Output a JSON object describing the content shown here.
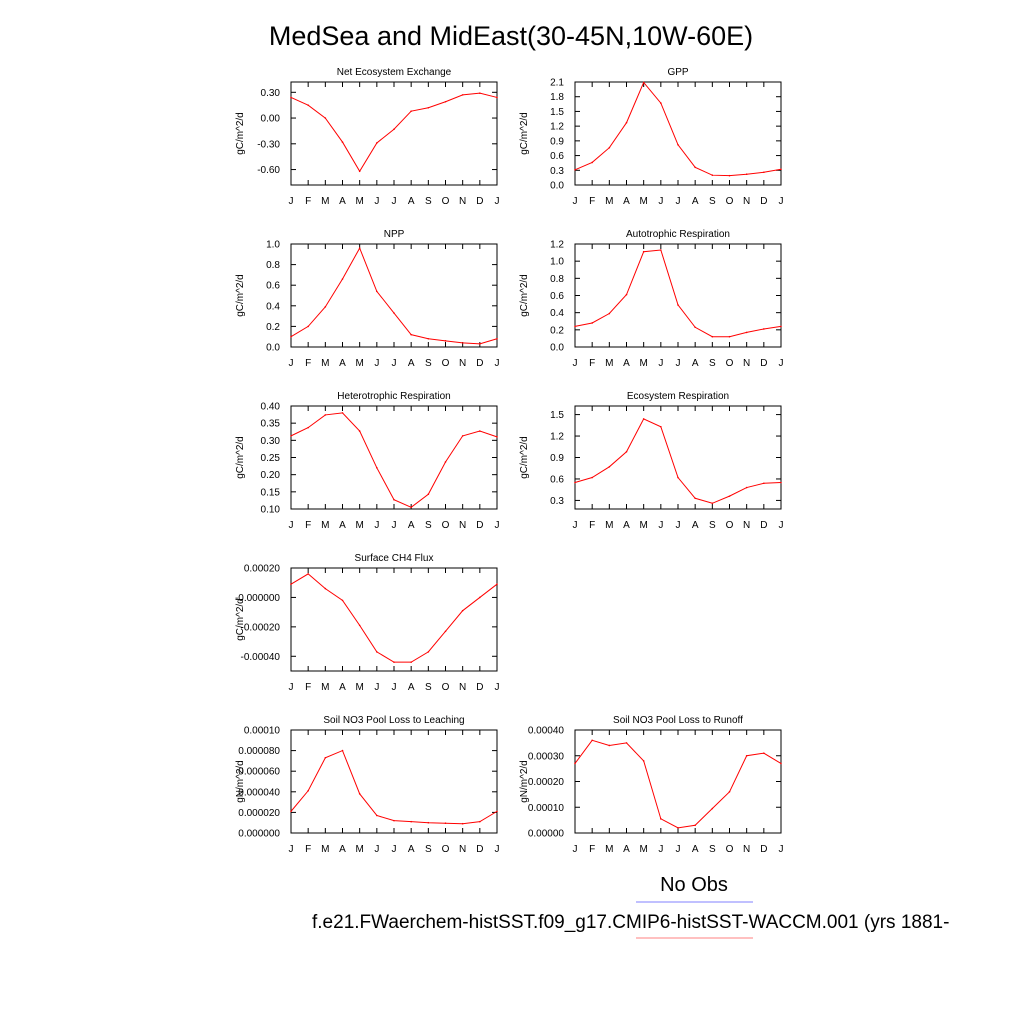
{
  "figure": {
    "title": "MedSea and MidEast(30-45N,10W-60E)",
    "legend_obs": "No Obs",
    "legend_run": "f.e21.FWaerchem-histSST.f09_g17.CMIP6-histSST-WACCM.001 (yrs 1881-",
    "colors": {
      "model": "#ff0000",
      "obs": "#8080ff",
      "axis": "#000000"
    }
  },
  "chart_data": [
    {
      "type": "line",
      "title": "Net Ecosystem Exchange",
      "ylabel": "gC/m^2/d",
      "categories": [
        "J",
        "F",
        "M",
        "A",
        "M",
        "J",
        "J",
        "A",
        "S",
        "O",
        "N",
        "D",
        "J"
      ],
      "yticks": [
        "0.30",
        "0.00",
        "-0.30",
        "-0.60"
      ],
      "ytick_values": [
        0.3,
        0.0,
        -0.3,
        -0.6
      ],
      "ylim": [
        -0.78,
        0.42
      ],
      "series": [
        {
          "values": [
            0.24,
            0.15,
            0.0,
            -0.28,
            -0.62,
            -0.29,
            -0.13,
            0.08,
            0.12,
            0.19,
            0.27,
            0.29,
            0.24
          ]
        }
      ]
    },
    {
      "type": "line",
      "title": "GPP",
      "ylabel": "gC/m^2/d",
      "categories": [
        "J",
        "F",
        "M",
        "A",
        "M",
        "J",
        "J",
        "A",
        "S",
        "O",
        "N",
        "D",
        "J"
      ],
      "yticks": [
        "2.1",
        "1.8",
        "1.5",
        "1.2",
        "0.9",
        "0.6",
        "0.3",
        "0.0"
      ],
      "ytick_values": [
        2.1,
        1.8,
        1.5,
        1.2,
        0.9,
        0.6,
        0.3,
        0.0
      ],
      "ylim": [
        0,
        2.1
      ],
      "series": [
        {
          "values": [
            0.31,
            0.46,
            0.76,
            1.27,
            2.09,
            1.67,
            0.82,
            0.36,
            0.2,
            0.19,
            0.22,
            0.26,
            0.32
          ]
        }
      ]
    },
    {
      "type": "line",
      "title": "NPP",
      "ylabel": "gC/m^2/d",
      "categories": [
        "J",
        "F",
        "M",
        "A",
        "M",
        "J",
        "J",
        "A",
        "S",
        "O",
        "N",
        "D",
        "J"
      ],
      "yticks": [
        "1.0",
        "0.8",
        "0.6",
        "0.4",
        "0.2",
        "0.0"
      ],
      "ytick_values": [
        1.0,
        0.8,
        0.6,
        0.4,
        0.2,
        0.0
      ],
      "ylim": [
        0,
        1.0
      ],
      "series": [
        {
          "values": [
            0.1,
            0.2,
            0.39,
            0.66,
            0.96,
            0.54,
            0.33,
            0.12,
            0.08,
            0.06,
            0.04,
            0.03,
            0.08
          ]
        }
      ]
    },
    {
      "type": "line",
      "title": "Autotrophic Respiration",
      "ylabel": "gC/m^2/d",
      "categories": [
        "J",
        "F",
        "M",
        "A",
        "M",
        "J",
        "J",
        "A",
        "S",
        "O",
        "N",
        "D",
        "J"
      ],
      "yticks": [
        "1.2",
        "1.0",
        "0.8",
        "0.6",
        "0.4",
        "0.2",
        "0.0"
      ],
      "ytick_values": [
        1.2,
        1.0,
        0.8,
        0.6,
        0.4,
        0.2,
        0.0
      ],
      "ylim": [
        0,
        1.2
      ],
      "series": [
        {
          "values": [
            0.24,
            0.28,
            0.39,
            0.61,
            1.11,
            1.13,
            0.49,
            0.23,
            0.12,
            0.12,
            0.17,
            0.21,
            0.24
          ]
        }
      ]
    },
    {
      "type": "line",
      "title": "Heterotrophic Respiration",
      "ylabel": "gC/m^2/d",
      "categories": [
        "J",
        "F",
        "M",
        "A",
        "M",
        "J",
        "J",
        "A",
        "S",
        "O",
        "N",
        "D",
        "J"
      ],
      "yticks": [
        "0.40",
        "0.35",
        "0.30",
        "0.25",
        "0.20",
        "0.15",
        "0.10"
      ],
      "ytick_values": [
        0.4,
        0.35,
        0.3,
        0.25,
        0.2,
        0.15,
        0.1
      ],
      "ylim": [
        0.1,
        0.4
      ],
      "series": [
        {
          "values": [
            0.313,
            0.337,
            0.374,
            0.38,
            0.327,
            0.22,
            0.127,
            0.105,
            0.143,
            0.237,
            0.313,
            0.327,
            0.31
          ]
        }
      ]
    },
    {
      "type": "line",
      "title": "Ecosystem Respiration",
      "ylabel": "gC/m^2/d",
      "categories": [
        "J",
        "F",
        "M",
        "A",
        "M",
        "J",
        "J",
        "A",
        "S",
        "O",
        "N",
        "D",
        "J"
      ],
      "yticks": [
        "1.5",
        "1.2",
        "0.9",
        "0.6",
        "0.3"
      ],
      "ytick_values": [
        1.5,
        1.2,
        0.9,
        0.6,
        0.3
      ],
      "ylim": [
        0.18,
        1.62
      ],
      "series": [
        {
          "values": [
            0.55,
            0.62,
            0.77,
            0.98,
            1.44,
            1.33,
            0.62,
            0.33,
            0.26,
            0.36,
            0.48,
            0.54,
            0.55
          ]
        }
      ]
    },
    {
      "type": "line",
      "title": "Surface CH4 Flux",
      "ylabel": "gC/m^2/d",
      "categories": [
        "J",
        "F",
        "M",
        "A",
        "M",
        "J",
        "J",
        "A",
        "S",
        "O",
        "N",
        "D",
        "J"
      ],
      "yticks": [
        "0.00020",
        "-0.000000",
        "-0.00020",
        "-0.00040"
      ],
      "ytick_values": [
        0.0002,
        0.0,
        -0.0002,
        -0.0004
      ],
      "ylim": [
        -0.0005,
        0.0002
      ],
      "series": [
        {
          "values": [
            9e-05,
            0.00016,
            6e-05,
            -2e-05,
            -0.00019,
            -0.00037,
            -0.00044,
            -0.00044,
            -0.00037,
            -0.00023,
            -9e-05,
            0.0,
            9e-05
          ]
        }
      ]
    },
    {
      "type": "line",
      "title": "Soil NO3 Pool Loss to Leaching",
      "ylabel": "gN/m^2/d",
      "categories": [
        "J",
        "F",
        "M",
        "A",
        "M",
        "J",
        "J",
        "A",
        "S",
        "O",
        "N",
        "D",
        "J"
      ],
      "yticks": [
        "0.00010",
        "0.000080",
        "0.000060",
        "0.000040",
        "0.000020",
        "0.000000"
      ],
      "ytick_values": [
        0.0001,
        8e-05,
        6e-05,
        4e-05,
        2e-05,
        0.0
      ],
      "ylim": [
        0,
        0.0001
      ],
      "series": [
        {
          "values": [
            2.1e-05,
            4.1e-05,
            7.3e-05,
            8e-05,
            3.8e-05,
            1.7e-05,
            1.2e-05,
            1.1e-05,
            1e-05,
            9.5e-06,
            9e-06,
            1.1e-05,
            2.1e-05
          ]
        }
      ]
    },
    {
      "type": "line",
      "title": "Soil NO3 Pool Loss to Runoff",
      "ylabel": "gN/m^2/d",
      "categories": [
        "J",
        "F",
        "M",
        "A",
        "M",
        "J",
        "J",
        "A",
        "S",
        "O",
        "N",
        "D",
        "J"
      ],
      "yticks": [
        "0.00040",
        "0.00030",
        "0.00020",
        "0.00010",
        "0.00000"
      ],
      "ytick_values": [
        0.0004,
        0.0003,
        0.0002,
        0.0001,
        0.0
      ],
      "ylim": [
        0,
        0.0004
      ],
      "series": [
        {
          "values": [
            0.00027,
            0.00036,
            0.00034,
            0.00035,
            0.00028,
            5.5e-05,
            2e-05,
            3e-05,
            9.5e-05,
            0.00016,
            0.0003,
            0.00031,
            0.00027
          ]
        }
      ]
    }
  ]
}
